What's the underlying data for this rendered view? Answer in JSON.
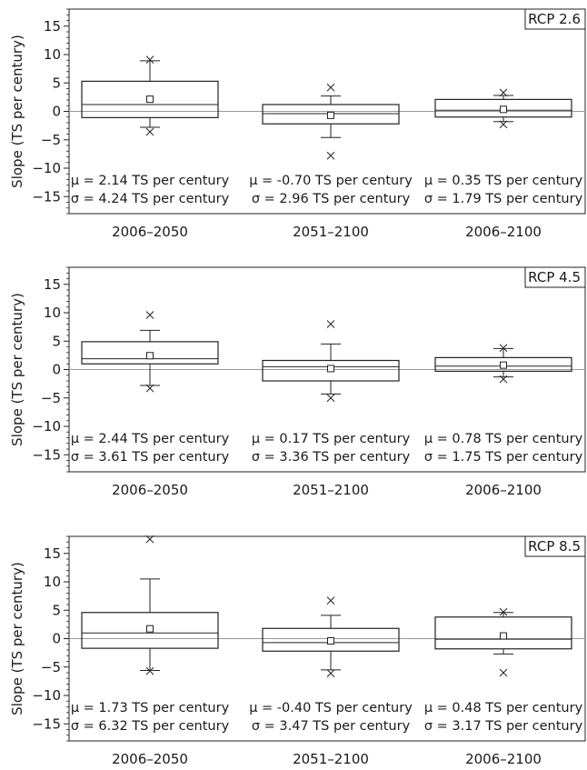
{
  "chart_data": [
    {
      "type": "box",
      "scenario_label": "RCP 2.6",
      "ylabel": "Slope (TS per century)",
      "ylim": [
        -18,
        18
      ],
      "yticks": [
        -15,
        -10,
        -5,
        0,
        5,
        10,
        15
      ],
      "categories": [
        "2006–2050",
        "2051–2100",
        "2006–2100"
      ],
      "boxes": [
        {
          "whisker_low": -2.8,
          "q1": -1.1,
          "median": 1.2,
          "q3": 5.3,
          "whisker_high": 8.9,
          "mean": 2.14,
          "outliers": [
            -3.6,
            9.1
          ]
        },
        {
          "whisker_low": -4.6,
          "q1": -2.2,
          "median": -0.4,
          "q3": 1.2,
          "whisker_high": 2.7,
          "mean": -0.7,
          "outliers": [
            -7.8,
            4.2
          ]
        },
        {
          "whisker_low": -1.8,
          "q1": -1.0,
          "median": 0.2,
          "q3": 2.1,
          "whisker_high": 2.8,
          "mean": 0.35,
          "outliers": [
            -2.3,
            3.3
          ]
        }
      ],
      "stats": [
        {
          "mu": "μ = 2.14 TS per century",
          "sigma": "σ = 4.24 TS per century"
        },
        {
          "mu": "μ = -0.70 TS per century",
          "sigma": "σ = 2.96 TS per century"
        },
        {
          "mu": "μ = 0.35 TS per century",
          "sigma": "σ = 1.79 TS per century"
        }
      ]
    },
    {
      "type": "box",
      "scenario_label": "RCP 4.5",
      "ylabel": "Slope (TS per century)",
      "ylim": [
        -18,
        18
      ],
      "yticks": [
        -15,
        -10,
        -5,
        0,
        5,
        10,
        15
      ],
      "categories": [
        "2006–2050",
        "2051–2100",
        "2006–2100"
      ],
      "boxes": [
        {
          "whisker_low": -2.8,
          "q1": 1.0,
          "median": 1.9,
          "q3": 4.9,
          "whisker_high": 6.9,
          "mean": 2.44,
          "outliers": [
            -3.3,
            9.6
          ]
        },
        {
          "whisker_low": -4.3,
          "q1": -2.0,
          "median": 0.5,
          "q3": 1.6,
          "whisker_high": 4.5,
          "mean": 0.17,
          "outliers": [
            -5.0,
            8.0
          ]
        },
        {
          "whisker_low": -1.3,
          "q1": -0.3,
          "median": 0.6,
          "q3": 2.1,
          "whisker_high": 3.7,
          "mean": 0.78,
          "outliers": [
            -1.7,
            3.8
          ]
        }
      ],
      "stats": [
        {
          "mu": "μ = 2.44 TS per century",
          "sigma": "σ = 3.61 TS per century"
        },
        {
          "mu": "μ = 0.17 TS per century",
          "sigma": "σ = 3.36 TS per century"
        },
        {
          "mu": "μ = 0.78 TS per century",
          "sigma": "σ = 1.75 TS per century"
        }
      ]
    },
    {
      "type": "box",
      "scenario_label": "RCP 8.5",
      "ylabel": "Slope (TS per century)",
      "ylim": [
        -18,
        18
      ],
      "yticks": [
        -15,
        -10,
        -5,
        0,
        5,
        10,
        15
      ],
      "categories": [
        "2006–2050",
        "2051–2100",
        "2006–2100"
      ],
      "boxes": [
        {
          "whisker_low": -5.6,
          "q1": -1.7,
          "median": 1.0,
          "q3": 4.6,
          "whisker_high": 10.5,
          "mean": 1.73,
          "outliers": [
            -5.7,
            17.5
          ]
        },
        {
          "whisker_low": -5.5,
          "q1": -2.2,
          "median": -0.7,
          "q3": 1.8,
          "whisker_high": 4.1,
          "mean": -0.4,
          "outliers": [
            -6.1,
            6.7
          ]
        },
        {
          "whisker_low": -2.7,
          "q1": -1.8,
          "median": -0.1,
          "q3": 3.8,
          "whisker_high": 4.6,
          "mean": 0.48,
          "outliers": [
            -6.0,
            4.7
          ]
        }
      ],
      "stats": [
        {
          "mu": "μ = 1.73 TS per century",
          "sigma": "σ = 6.32 TS per century"
        },
        {
          "mu": "μ = -0.40 TS per century",
          "sigma": "σ = 3.47 TS per century"
        },
        {
          "mu": "μ = 0.48 TS per century",
          "sigma": "σ = 3.17 TS per century"
        }
      ]
    }
  ]
}
